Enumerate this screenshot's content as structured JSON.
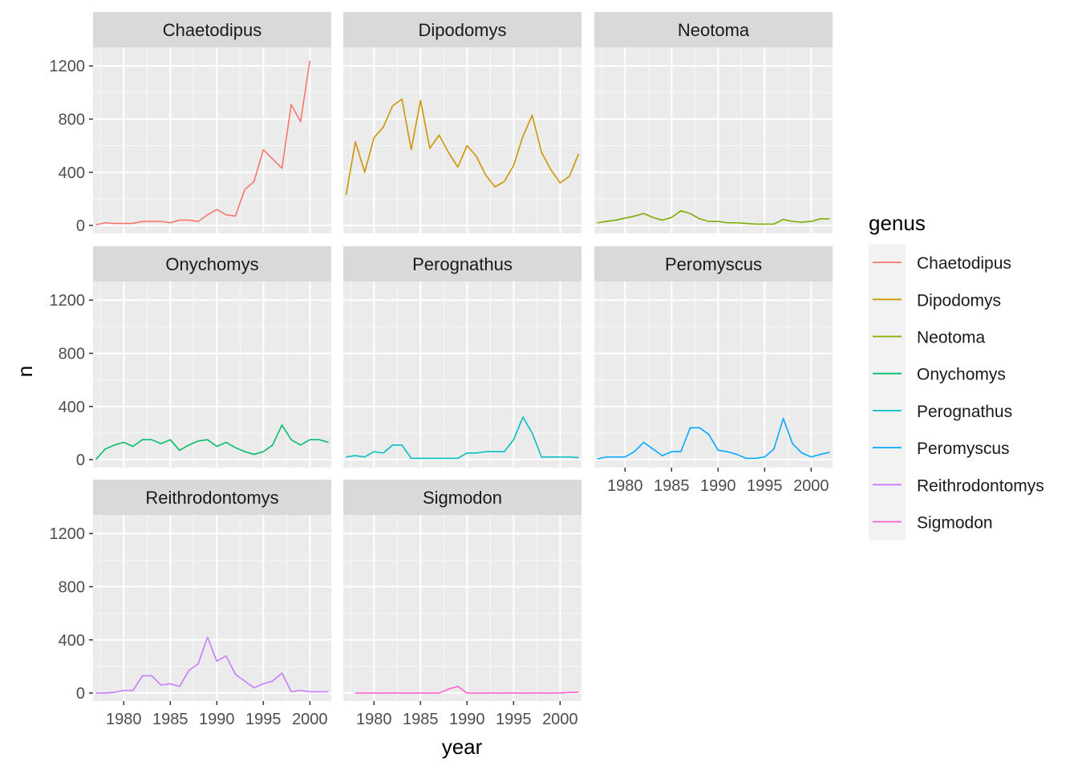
{
  "chart_data": {
    "type": "line",
    "facet_by": "genus",
    "xlabel": "year",
    "ylabel": "n",
    "legend_title": "genus",
    "legend_position": "right",
    "grid": true,
    "xlim": [
      1976.7,
      2002.3
    ],
    "ylim": [
      -60,
      1340
    ],
    "x_ticks": [
      1980,
      1985,
      1990,
      1995,
      2000
    ],
    "y_ticks": [
      0,
      400,
      800,
      1200
    ],
    "x": [
      1977,
      1978,
      1979,
      1980,
      1981,
      1982,
      1983,
      1984,
      1985,
      1986,
      1987,
      1988,
      1989,
      1990,
      1991,
      1992,
      1993,
      1994,
      1995,
      1996,
      1997,
      1998,
      1999,
      2000,
      2001,
      2002
    ],
    "series": [
      {
        "name": "Chaetodipus",
        "color": "#F8766D",
        "values": [
          5,
          20,
          15,
          15,
          15,
          30,
          30,
          30,
          20,
          40,
          40,
          30,
          80,
          120,
          80,
          70,
          270,
          330,
          570,
          500,
          430,
          910,
          780,
          1240,
          null,
          null
        ],
        "x_start": 1977
      },
      {
        "name": "Dipodomys",
        "color": "#CD9600",
        "values": [
          230,
          630,
          400,
          660,
          740,
          900,
          950,
          570,
          940,
          580,
          680,
          550,
          440,
          600,
          520,
          380,
          290,
          330,
          450,
          670,
          830,
          550,
          420,
          320,
          370,
          540
        ],
        "x_start": 1977
      },
      {
        "name": "Neotoma",
        "color": "#7CAE00",
        "values": [
          20,
          30,
          40,
          55,
          70,
          90,
          60,
          40,
          60,
          110,
          90,
          50,
          30,
          30,
          20,
          20,
          15,
          10,
          10,
          10,
          45,
          30,
          25,
          30,
          50,
          50
        ],
        "x_start": 1977
      },
      {
        "name": "Onychomys",
        "color": "#00BE67",
        "values": [
          0,
          80,
          110,
          130,
          100,
          150,
          150,
          120,
          150,
          70,
          110,
          140,
          150,
          100,
          130,
          90,
          60,
          40,
          60,
          110,
          260,
          150,
          110,
          150,
          150,
          130
        ],
        "x_start": 1977
      },
      {
        "name": "Perognathus",
        "color": "#00BFC4",
        "values": [
          20,
          30,
          20,
          60,
          50,
          110,
          110,
          10,
          10,
          10,
          10,
          10,
          10,
          50,
          50,
          60,
          60,
          60,
          150,
          320,
          200,
          20,
          20,
          20,
          20,
          15
        ],
        "x_start": 1977
      },
      {
        "name": "Peromyscus",
        "color": "#00A9FF",
        "values": [
          5,
          20,
          20,
          20,
          60,
          130,
          80,
          30,
          60,
          60,
          240,
          240,
          190,
          70,
          60,
          40,
          10,
          10,
          20,
          80,
          310,
          120,
          50,
          20,
          40,
          55
        ],
        "x_start": 1977
      },
      {
        "name": "Reithrodontomys",
        "color": "#C77CFF",
        "values": [
          0,
          0,
          5,
          20,
          20,
          130,
          130,
          60,
          70,
          50,
          170,
          220,
          420,
          240,
          280,
          140,
          90,
          40,
          70,
          90,
          150,
          10,
          20,
          10,
          10,
          10
        ],
        "x_start": 1977
      },
      {
        "name": "Sigmodon",
        "color": "#FF61CC",
        "values": [
          null,
          0,
          0,
          0,
          0,
          0,
          0,
          0,
          0,
          0,
          0,
          30,
          50,
          0,
          0,
          0,
          0,
          0,
          0,
          0,
          0,
          0,
          0,
          0,
          5,
          5
        ],
        "x_start": 1977
      }
    ]
  }
}
